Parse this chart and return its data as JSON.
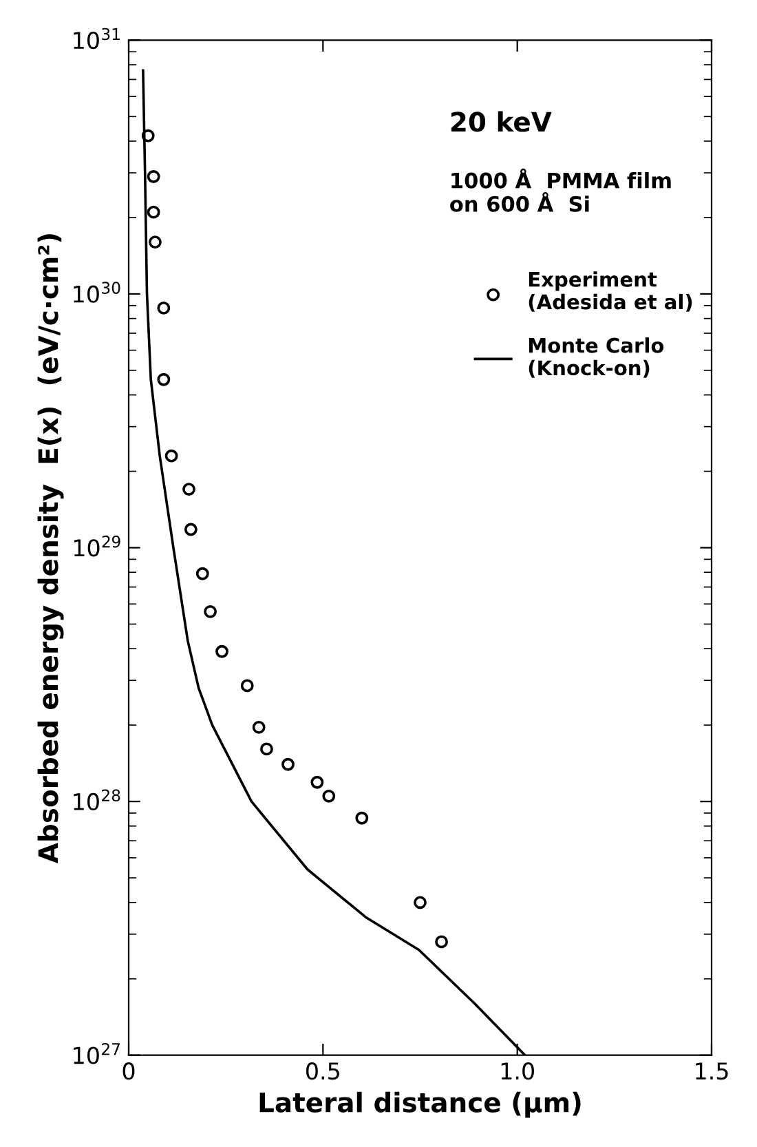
{
  "chart_data": {
    "type": "scatter",
    "xlabel": "Lateral distance (μm)",
    "ylabel": "Absorbed energy density  E(x)  (eV/c·cm²)",
    "annotations": [
      "20 keV",
      "1000 Å  PMMA film\non 600 Å  Si"
    ],
    "log": "y",
    "xlim": [
      0,
      1.5
    ],
    "ylim": [
      1e+27,
      1e+31
    ],
    "xticks": [
      0,
      0.5,
      {
        "value": 1.0,
        "label": "1.0"
      },
      1.5
    ],
    "yticks": [
      {
        "value": 1e+27,
        "label": "10$^{27}$"
      },
      {
        "value": 1e+28,
        "label": "10$^{28}$"
      },
      {
        "value": 1e+29,
        "label": "10$^{29}$"
      },
      {
        "value": 1e+30,
        "label": "10$^{30}$"
      },
      {
        "value": 1e+31,
        "label": "10$^{31}$"
      }
    ],
    "grid": false,
    "legend": "top right",
    "series": [
      {
        "name": "Experiment\n(Adesida et al)",
        "marker": "circle",
        "color": "#000000",
        "x": [
          0.05,
          0.064,
          0.064,
          0.068,
          0.09,
          0.09,
          0.11,
          0.155,
          0.16,
          0.19,
          0.21,
          0.24,
          0.305,
          0.335,
          0.355,
          0.41,
          0.485,
          0.515,
          0.6,
          0.75,
          0.805
        ],
        "values": [
          4.2e+30,
          2.9e+30,
          2.1e+30,
          1.6e+30,
          8.8e+29,
          4.6e+29,
          2.3e+29,
          1.7e+29,
          1.18e+29,
          7.9e+28,
          5.6e+28,
          3.9e+28,
          2.86e+28,
          1.96e+28,
          1.61e+28,
          1.4e+28,
          1.19e+28,
          1.05e+28,
          8.6e+27,
          4e+27,
          2.8e+27
        ]
      },
      {
        "name": "Monte Carlo\n(Knock-on)",
        "type": "line",
        "line_style": "solid",
        "color": "#000000",
        "x": [
          0.037,
          0.042,
          0.047,
          0.057,
          0.08,
          0.115,
          0.152,
          0.18,
          0.215,
          0.316,
          0.46,
          0.61,
          0.747,
          0.89,
          1.02
        ],
        "values": [
          7.6e+30,
          3e+30,
          1e+30,
          4.6e+29,
          2.3e+29,
          1e+29,
          4.3e+28,
          2.8e+28,
          2e+28,
          1e+28,
          5.4e+27,
          3.5e+27,
          2.6e+27,
          1.6e+27,
          1e+27
        ]
      }
    ]
  }
}
